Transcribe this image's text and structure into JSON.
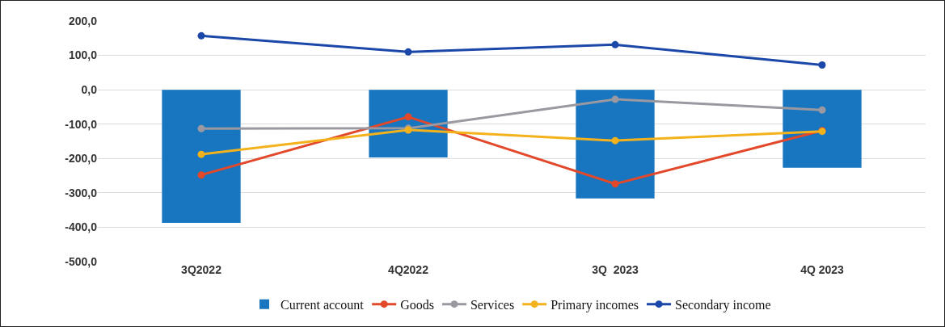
{
  "chart_data": {
    "type": "bar",
    "categories": [
      "3Q2022",
      "4Q2022",
      "3Q  2023",
      "4Q 2023"
    ],
    "series": [
      {
        "name": "Current account",
        "color": "#1776bf",
        "values": [
          -387,
          -197,
          -316,
          -227
        ]
      },
      {
        "name": "Goods",
        "type": "line",
        "color": "#e2482a",
        "values": [
          -248,
          -79,
          -274,
          -119
        ]
      },
      {
        "name": "Services",
        "type": "line",
        "color": "#9a98a0",
        "values": [
          -113,
          -112,
          -28,
          -59
        ]
      },
      {
        "name": "Primary incomes",
        "type": "line",
        "color": "#f3b21c",
        "values": [
          -188,
          -117,
          -148,
          -121
        ]
      },
      {
        "name": "Secondary income",
        "type": "line",
        "color": "#1a47a8",
        "values": [
          157,
          110,
          131,
          72
        ]
      }
    ],
    "ylim": [
      -500,
      200
    ],
    "yticks": [
      {
        "value": -500,
        "label": "-500,0"
      },
      {
        "value": -400,
        "label": "-400,0"
      },
      {
        "value": -300,
        "label": "-300,0"
      },
      {
        "value": -200,
        "label": "-200,0"
      },
      {
        "value": -100,
        "label": "-100,0"
      },
      {
        "value": 0,
        "label": "0,0"
      },
      {
        "value": 100,
        "label": "100,0"
      },
      {
        "value": 200,
        "label": "200,0"
      }
    ],
    "grid": "y",
    "legend": "bottom",
    "marker": "circle",
    "line_style": "solid"
  }
}
